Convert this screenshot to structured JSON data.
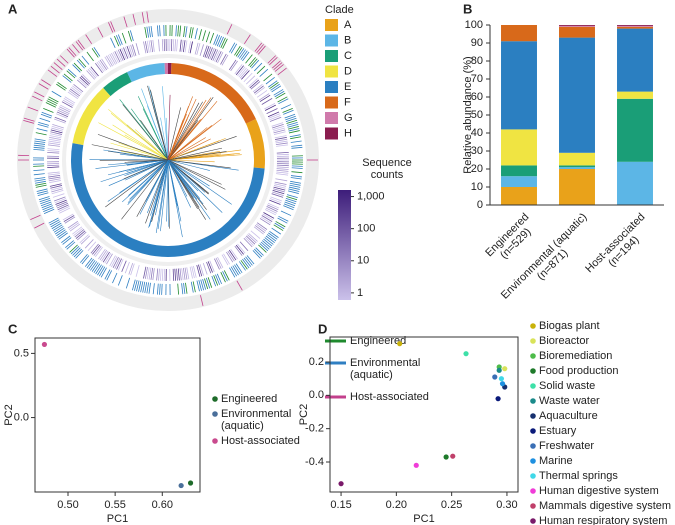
{
  "chart_data": [
    {
      "type": "tree",
      "panel": "A",
      "clade_title": "Clade",
      "clades": [
        {
          "name": "A",
          "color": "#e9a21a"
        },
        {
          "name": "B",
          "color": "#5cb6e6"
        },
        {
          "name": "C",
          "color": "#1a9e77"
        },
        {
          "name": "D",
          "color": "#f0e442"
        },
        {
          "name": "E",
          "color": "#2b7fc1"
        },
        {
          "name": "F",
          "color": "#d8691a"
        },
        {
          "name": "G",
          "color": "#d07aab"
        },
        {
          "name": "H",
          "color": "#8b1d4f"
        }
      ],
      "colorbar": {
        "title": "Sequence counts",
        "log": true,
        "lim": [
          0.6,
          1600
        ],
        "ticks": [
          1,
          10,
          100,
          {
            "value": 1000,
            "label": "1,000"
          }
        ],
        "colors": [
          "#cbc1ea",
          "#3d1d7a"
        ]
      },
      "series": [
        {
          "name": "Engineered",
          "color": "#1f8a2e"
        },
        {
          "name": "Environmental (aquatic)",
          "color": "#2f7fc2"
        },
        {
          "name": "Host-associated",
          "color": "#c3408c"
        }
      ]
    },
    {
      "type": "bar",
      "stacked": true,
      "panel": "B",
      "ylabel": "Relative abundance (%)",
      "categories": [
        "Engineered\n(n=529)",
        "Environmental (aquatic)\n(n=871)",
        "Host-associated\n(n=194)"
      ],
      "series": [
        {
          "color": "#e9a21a",
          "values": [
            10,
            20,
            0
          ]
        },
        {
          "color": "#5cb6e6",
          "values": [
            6,
            1,
            24
          ]
        },
        {
          "color": "#1a9e77",
          "values": [
            6,
            1,
            35
          ]
        },
        {
          "color": "#f0e442",
          "values": [
            20,
            7,
            4
          ]
        },
        {
          "color": "#2b7fc1",
          "values": [
            49,
            64,
            35
          ]
        },
        {
          "color": "#d8691a",
          "values": [
            9,
            6,
            1
          ]
        },
        {
          "color": "#d07aab",
          "values": [
            0,
            0.5,
            0.5
          ]
        },
        {
          "color": "#8b1d4f",
          "values": [
            0,
            0.5,
            0.5
          ]
        }
      ],
      "ylim": [
        0,
        100
      ],
      "yticks": [
        0,
        10,
        20,
        30,
        40,
        50,
        60,
        70,
        80,
        90,
        100
      ]
    },
    {
      "type": "scatter",
      "panel": "C",
      "xlabel": "PC1",
      "ylabel": "PC2",
      "xlim": [
        0.465,
        0.64
      ],
      "ylim": [
        -0.58,
        0.62
      ],
      "xticks": [
        {
          "value": 0.5,
          "label": "0.50"
        },
        0.55,
        {
          "value": 0.6,
          "label": "0.60"
        }
      ],
      "yticks": [
        {
          "value": 0,
          "label": "0.0"
        },
        0.5
      ],
      "series": [
        {
          "name": "Engineered",
          "color": "#1e6b2a",
          "x": [
            0.63
          ],
          "values": [
            -0.51
          ]
        },
        {
          "name": "Environmental (aquatic)",
          "color": "#4a6f9a",
          "x": [
            0.62
          ],
          "values": [
            -0.53
          ]
        },
        {
          "name": "Host-associated",
          "color": "#c94a8e",
          "x": [
            0.475
          ],
          "values": [
            0.57
          ]
        }
      ]
    },
    {
      "type": "scatter",
      "panel": "D",
      "xlabel": "PC1",
      "ylabel": "PC2",
      "xlim": [
        0.14,
        0.31
      ],
      "ylim": [
        -0.58,
        0.35
      ],
      "xticks": [
        0.15,
        {
          "value": 0.2,
          "label": "0.20"
        },
        0.25,
        {
          "value": 0.3,
          "label": "0.30"
        }
      ],
      "yticks": [
        -0.4,
        -0.2,
        {
          "value": 0,
          "label": "0.0"
        },
        0.2
      ],
      "series": [
        {
          "name": "Biogas plant",
          "color": "#c9b20a",
          "x": [
            0.203
          ],
          "values": [
            0.31
          ]
        },
        {
          "name": "Bioreactor",
          "color": "#d9e35a",
          "x": [
            0.298
          ],
          "values": [
            0.16
          ]
        },
        {
          "name": "Bioremediation",
          "color": "#4dbb4a",
          "x": [
            0.293
          ],
          "values": [
            0.17
          ]
        },
        {
          "name": "Food production",
          "color": "#1e7a2a",
          "x": [
            0.245
          ],
          "values": [
            -0.37
          ]
        },
        {
          "name": "Solid waste",
          "color": "#3ee0a8",
          "x": [
            0.263
          ],
          "values": [
            0.25
          ]
        },
        {
          "name": "Waste water",
          "color": "#1a8a8a",
          "x": [
            0.293
          ],
          "values": [
            0.15
          ]
        },
        {
          "name": "Aquaculture",
          "color": "#16306e",
          "x": [
            0.298
          ],
          "values": [
            0.05
          ]
        },
        {
          "name": "Estuary",
          "color": "#0a1a7a",
          "x": [
            0.292
          ],
          "values": [
            -0.02
          ]
        },
        {
          "name": "Freshwater",
          "color": "#3a6fb5",
          "x": [
            0.289
          ],
          "values": [
            0.11
          ]
        },
        {
          "name": "Marine",
          "color": "#1e90e0",
          "x": [
            0.296
          ],
          "values": [
            0.07
          ]
        },
        {
          "name": "Thermal springs",
          "color": "#40d8e8",
          "x": [
            0.295
          ],
          "values": [
            0.1
          ]
        },
        {
          "name": "Human digestive system",
          "color": "#f03cd8",
          "x": [
            0.218
          ],
          "values": [
            -0.42
          ]
        },
        {
          "name": "Mammals digestive system",
          "color": "#c0406a",
          "x": [
            0.251
          ],
          "values": [
            -0.365
          ]
        },
        {
          "name": "Human respiratory system",
          "color": "#7a1a6a",
          "x": [
            0.15
          ],
          "values": [
            -0.53
          ]
        }
      ]
    }
  ]
}
